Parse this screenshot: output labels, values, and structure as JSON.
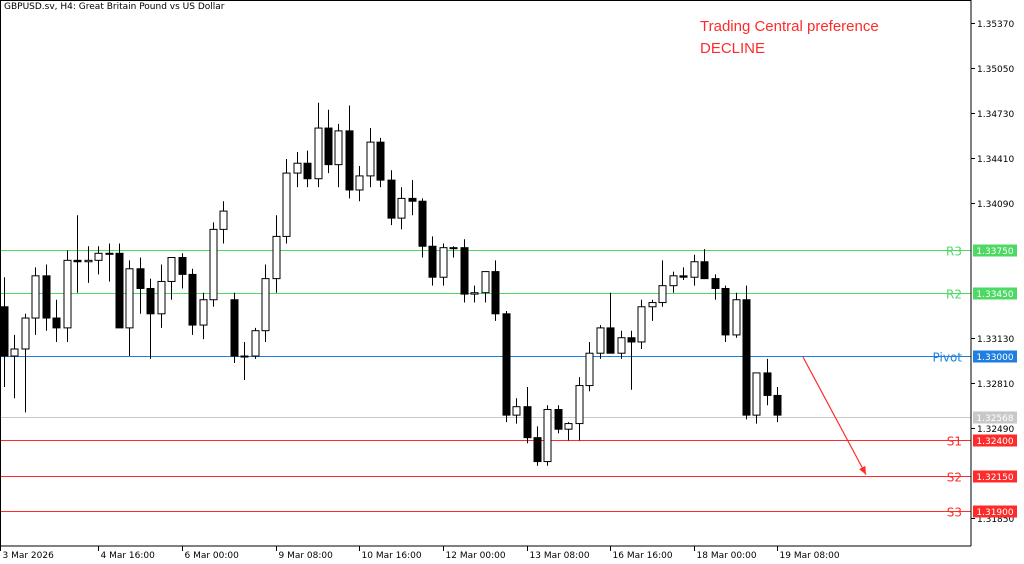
{
  "header": {
    "symbol_title": "GBPUSD.sv, H4:  Great Britain Pound vs US Dollar"
  },
  "annotation": {
    "line1": "Trading Central preference",
    "line2": "DECLINE",
    "color": "#ff2b2b"
  },
  "chart_data": {
    "type": "candlestick",
    "ylim": [
      1.3165,
      1.3553
    ],
    "y_ticks": [
      1.3537,
      1.3505,
      1.3473,
      1.3441,
      1.3409,
      1.3313,
      1.3281,
      1.3249,
      1.3185
    ],
    "x_ticks": [
      "3 Mar 2026",
      "4 Mar 16:00",
      "6 Mar 00:00",
      "9 Mar 08:00",
      "10 Mar 16:00",
      "12 Mar 00:00",
      "13 Mar 08:00",
      "16 Mar 16:00",
      "18 Mar 00:00",
      "19 Mar 08:00"
    ],
    "current_price": 1.32568,
    "levels": [
      {
        "name": "R3",
        "value": 1.3375,
        "label": "1.33750",
        "color": "#4cd964"
      },
      {
        "name": "R2",
        "value": 1.3345,
        "label": "1.33450",
        "color": "#4cd964"
      },
      {
        "name": "Pivot",
        "value": 1.33,
        "label": "1.33000",
        "color": "#1e7fe0"
      },
      {
        "name": "S1",
        "value": 1.324,
        "label": "1.32400",
        "color": "#ff2b2b"
      },
      {
        "name": "S2",
        "value": 1.3215,
        "label": "1.32150",
        "color": "#ff2b2b"
      },
      {
        "name": "S3",
        "value": 1.319,
        "label": "1.31900",
        "color": "#ff2b2b"
      }
    ],
    "forecast_arrow": {
      "from": [
        "19 Mar 08:00",
        1.33
      ],
      "to": [
        "20 Mar",
        1.3215
      ],
      "color": "#ff2b2b"
    },
    "candles": [
      [
        1.3335,
        1.3356,
        1.3278,
        1.33
      ],
      [
        1.33,
        1.3315,
        1.327,
        1.3305
      ],
      [
        1.3305,
        1.333,
        1.326,
        1.3327
      ],
      [
        1.3327,
        1.3363,
        1.3315,
        1.3357
      ],
      [
        1.3357,
        1.3365,
        1.3318,
        1.3327
      ],
      [
        1.3327,
        1.334,
        1.331,
        1.332
      ],
      [
        1.332,
        1.3375,
        1.331,
        1.3368
      ],
      [
        1.3368,
        1.34,
        1.3345,
        1.3367
      ],
      [
        1.3367,
        1.3378,
        1.3352,
        1.3368
      ],
      [
        1.3368,
        1.3378,
        1.3358,
        1.3373
      ],
      [
        1.3373,
        1.338,
        1.3353,
        1.3373
      ],
      [
        1.3373,
        1.338,
        1.332,
        1.332
      ],
      [
        1.332,
        1.3368,
        1.33,
        1.3362
      ],
      [
        1.3362,
        1.337,
        1.333,
        1.3348
      ],
      [
        1.3348,
        1.3355,
        1.3298,
        1.333
      ],
      [
        1.333,
        1.3365,
        1.332,
        1.3353
      ],
      [
        1.3353,
        1.337,
        1.334,
        1.337
      ],
      [
        1.337,
        1.3373,
        1.3348,
        1.3358
      ],
      [
        1.3358,
        1.3362,
        1.3315,
        1.3322
      ],
      [
        1.3322,
        1.3345,
        1.3312,
        1.334
      ],
      [
        1.334,
        1.3395,
        1.3335,
        1.339
      ],
      [
        1.339,
        1.341,
        1.338,
        1.3403
      ],
      [
        1.334,
        1.3345,
        1.3295,
        1.33
      ],
      [
        1.33,
        1.331,
        1.3283,
        1.33
      ],
      [
        1.33,
        1.332,
        1.3298,
        1.3318
      ],
      [
        1.3318,
        1.3365,
        1.331,
        1.3355
      ],
      [
        1.3355,
        1.34,
        1.3345,
        1.3385
      ],
      [
        1.3385,
        1.344,
        1.338,
        1.343
      ],
      [
        1.343,
        1.3445,
        1.342,
        1.3437
      ],
      [
        1.3437,
        1.3446,
        1.342,
        1.3426
      ],
      [
        1.3426,
        1.348,
        1.342,
        1.3462
      ],
      [
        1.3462,
        1.3475,
        1.343,
        1.3436
      ],
      [
        1.3436,
        1.3465,
        1.342,
        1.346
      ],
      [
        1.346,
        1.3478,
        1.3412,
        1.3418
      ],
      [
        1.3418,
        1.3435,
        1.341,
        1.3428
      ],
      [
        1.3428,
        1.3462,
        1.342,
        1.3452
      ],
      [
        1.3452,
        1.3455,
        1.342,
        1.3425
      ],
      [
        1.3425,
        1.3432,
        1.3393,
        1.3398
      ],
      [
        1.3398,
        1.342,
        1.339,
        1.3412
      ],
      [
        1.3412,
        1.3425,
        1.34,
        1.341
      ],
      [
        1.341,
        1.3412,
        1.337,
        1.3378
      ],
      [
        1.3378,
        1.3385,
        1.335,
        1.3356
      ],
      [
        1.3356,
        1.338,
        1.335,
        1.3377
      ],
      [
        1.3377,
        1.3378,
        1.337,
        1.3377
      ],
      [
        1.3377,
        1.3383,
        1.3338,
        1.3344
      ],
      [
        1.3344,
        1.335,
        1.3338,
        1.3345
      ],
      [
        1.3345,
        1.336,
        1.3338,
        1.336
      ],
      [
        1.336,
        1.3368,
        1.3325,
        1.333
      ],
      [
        1.333,
        1.3332,
        1.3253,
        1.3258
      ],
      [
        1.3258,
        1.327,
        1.3252,
        1.3264
      ],
      [
        1.3264,
        1.3278,
        1.3238,
        1.3242
      ],
      [
        1.3242,
        1.325,
        1.3222,
        1.3225
      ],
      [
        1.3225,
        1.3265,
        1.3222,
        1.3262
      ],
      [
        1.3262,
        1.3265,
        1.3245,
        1.3248
      ],
      [
        1.3248,
        1.3253,
        1.324,
        1.3252
      ],
      [
        1.3252,
        1.3285,
        1.324,
        1.3279
      ],
      [
        1.3279,
        1.331,
        1.3275,
        1.3302
      ],
      [
        1.3302,
        1.3322,
        1.3298,
        1.332
      ],
      [
        1.332,
        1.3345,
        1.3302,
        1.3302
      ],
      [
        1.3302,
        1.3318,
        1.3298,
        1.3313
      ],
      [
        1.3313,
        1.3318,
        1.3276,
        1.331
      ],
      [
        1.331,
        1.334,
        1.3305,
        1.3335
      ],
      [
        1.3335,
        1.334,
        1.3325,
        1.3338
      ],
      [
        1.3338,
        1.3368,
        1.3335,
        1.335
      ],
      [
        1.335,
        1.336,
        1.3345,
        1.3357
      ],
      [
        1.3357,
        1.3363,
        1.3354,
        1.3356
      ],
      [
        1.3356,
        1.3372,
        1.335,
        1.3367
      ],
      [
        1.3367,
        1.3376,
        1.3355,
        1.3355
      ],
      [
        1.3355,
        1.3358,
        1.334,
        1.3348
      ],
      [
        1.3348,
        1.335,
        1.331,
        1.3315
      ],
      [
        1.3315,
        1.3345,
        1.3313,
        1.334
      ],
      [
        1.334,
        1.335,
        1.3255,
        1.3258
      ],
      [
        1.3258,
        1.3288,
        1.3252,
        1.3288
      ],
      [
        1.3288,
        1.3298,
        1.3265,
        1.3272
      ],
      [
        1.3272,
        1.3278,
        1.3253,
        1.3258
      ]
    ]
  }
}
